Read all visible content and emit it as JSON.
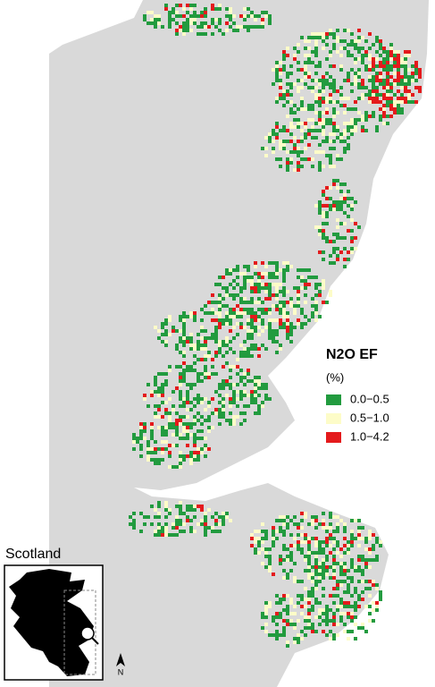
{
  "legend": {
    "title": "N2O EF",
    "unit": "(%)",
    "items": [
      {
        "label": "0.0−0.5",
        "color": "#229b3f"
      },
      {
        "label": "0.5−1.0",
        "color": "#fdfcc8"
      },
      {
        "label": "1.0−4.2",
        "color": "#e41a1c"
      }
    ]
  },
  "inset": {
    "title": "Scotland",
    "north": "N"
  }
}
